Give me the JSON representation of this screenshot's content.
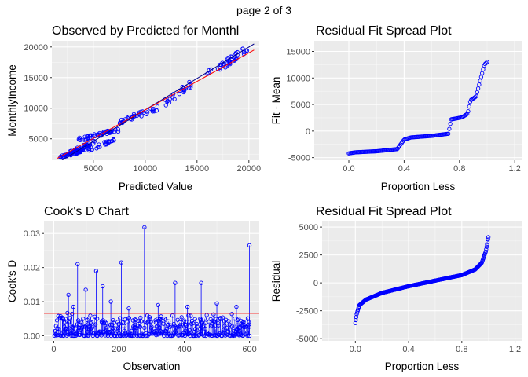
{
  "page_title": "page 2 of 3",
  "colors": {
    "panel_bg": "#ebebeb",
    "grid_major": "#ffffff",
    "points": "#0000ff",
    "fit_line": "#ff0000",
    "diag_line": "#00008b"
  },
  "chart_data": [
    {
      "type": "scatter",
      "title": "Observed by Predicted for Monthl",
      "xlabel": "Predicted Value",
      "ylabel": "MonthlyIncome",
      "xlim": [
        1000,
        21000
      ],
      "ylim": [
        1500,
        21000
      ],
      "xticks": [
        5000,
        10000,
        15000,
        20000
      ],
      "xtick_labels": [
        "5000",
        "10000",
        "15000",
        "20000"
      ],
      "yticks": [
        5000,
        10000,
        15000,
        20000
      ],
      "ytick_labels": [
        "5000",
        "10000",
        "15000",
        "20000"
      ],
      "clusters": [
        {
          "x": [
            1800,
            4200
          ],
          "y": [
            2000,
            3200
          ],
          "n": 60
        },
        {
          "x": [
            2500,
            5200
          ],
          "y": [
            2500,
            4500
          ],
          "n": 45
        },
        {
          "x": [
            3500,
            7500
          ],
          "y": [
            4800,
            6500
          ],
          "n": 50
        },
        {
          "x": [
            4500,
            7000
          ],
          "y": [
            3200,
            4800
          ],
          "n": 25
        },
        {
          "x": [
            7500,
            11500
          ],
          "y": [
            7800,
            10200
          ],
          "n": 35
        },
        {
          "x": [
            11500,
            14500
          ],
          "y": [
            10500,
            14000
          ],
          "n": 25
        },
        {
          "x": [
            17000,
            20000
          ],
          "y": [
            16500,
            20000
          ],
          "n": 30
        },
        {
          "x": [
            15500,
            18500
          ],
          "y": [
            15500,
            17500
          ],
          "n": 12
        }
      ],
      "fit_line": {
        "x": [
          1500,
          20500
        ],
        "y": [
          1800,
          19500
        ]
      },
      "diag_line": {
        "x": [
          1500,
          20500
        ],
        "y": [
          1000,
          20500
        ]
      }
    },
    {
      "type": "scatter",
      "title": "Residual Fit Spread Plot",
      "xlabel": "Proportion Less",
      "ylabel": "Fit - Mean",
      "xlim": [
        -0.25,
        1.25
      ],
      "ylim": [
        -5500,
        17000
      ],
      "xticks": [
        0.0,
        0.4,
        0.8,
        1.2
      ],
      "xtick_labels": [
        "0.0",
        "0.4",
        "0.8",
        "1.2"
      ],
      "yticks": [
        -5000,
        0,
        5000,
        10000,
        15000
      ],
      "ytick_labels": [
        "-5000",
        "0",
        "5000",
        "10000",
        "15000"
      ],
      "quantile_knots": {
        "p": [
          0.0,
          0.05,
          0.2,
          0.35,
          0.4,
          0.45,
          0.6,
          0.72,
          0.74,
          0.82,
          0.86,
          0.88,
          0.92,
          0.95,
          0.98,
          1.0
        ],
        "y": [
          -4200,
          -4000,
          -3800,
          -3400,
          -1600,
          -1200,
          -900,
          -500,
          2200,
          2600,
          3300,
          5800,
          6500,
          9500,
          12500,
          13000
        ]
      },
      "n_points": 140
    },
    {
      "type": "scatter",
      "title": "Cook's D Chart",
      "xlabel": "Observation",
      "ylabel": "Cook's D",
      "xlim": [
        -30,
        630
      ],
      "ylim": [
        -0.0015,
        0.0335
      ],
      "xticks": [
        0,
        200,
        400,
        600
      ],
      "xtick_labels": [
        "0",
        "200",
        "400",
        "600"
      ],
      "yticks": [
        0.0,
        0.01,
        0.02,
        0.03
      ],
      "ytick_labels": [
        "0.00",
        "0.01",
        "0.02",
        "0.03"
      ],
      "threshold": 0.0066,
      "n_obs": 600,
      "large_points": [
        {
          "x": 278,
          "y": 0.0318
        },
        {
          "x": 600,
          "y": 0.0265
        },
        {
          "x": 73,
          "y": 0.021
        },
        {
          "x": 207,
          "y": 0.0215
        },
        {
          "x": 130,
          "y": 0.019
        },
        {
          "x": 372,
          "y": 0.0155
        },
        {
          "x": 452,
          "y": 0.0155
        },
        {
          "x": 150,
          "y": 0.0145
        },
        {
          "x": 98,
          "y": 0.0135
        },
        {
          "x": 45,
          "y": 0.012
        },
        {
          "x": 175,
          "y": 0.01
        },
        {
          "x": 320,
          "y": 0.009
        },
        {
          "x": 500,
          "y": 0.0095
        },
        {
          "x": 410,
          "y": 0.0085
        },
        {
          "x": 230,
          "y": 0.008
        },
        {
          "x": 560,
          "y": 0.0085
        },
        {
          "x": 60,
          "y": 0.0085
        }
      ]
    },
    {
      "type": "scatter",
      "title": "Residual Fit Spread Plot",
      "xlabel": "Proportion Less",
      "ylabel": "Residual",
      "xlim": [
        -0.25,
        1.25
      ],
      "ylim": [
        -5200,
        5500
      ],
      "xticks": [
        0.0,
        0.4,
        0.8,
        1.2
      ],
      "xtick_labels": [
        "0.0",
        "0.4",
        "0.8",
        "1.2"
      ],
      "yticks": [
        -5000,
        -2500,
        0,
        2500,
        5000
      ],
      "ytick_labels": [
        "-5000",
        "-2500",
        "0",
        "2500",
        "5000"
      ],
      "quantile_knots": {
        "p": [
          0.0,
          0.01,
          0.03,
          0.08,
          0.2,
          0.4,
          0.6,
          0.8,
          0.9,
          0.95,
          0.98,
          1.0
        ],
        "y": [
          -3600,
          -2800,
          -2000,
          -1500,
          -900,
          -300,
          200,
          700,
          1200,
          1800,
          2800,
          4100
        ]
      },
      "n_points": 300
    }
  ]
}
